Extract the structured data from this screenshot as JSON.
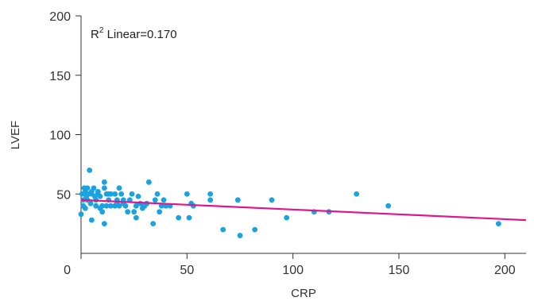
{
  "chart_data": {
    "type": "scatter",
    "xlabel": "CRP",
    "ylabel": "LVEF",
    "xlim": [
      0,
      210
    ],
    "ylim": [
      0,
      200
    ],
    "xticks": [
      0,
      50,
      100,
      150,
      200
    ],
    "yticks": [
      50,
      100,
      150,
      200
    ],
    "annotation": {
      "prefix": "R",
      "superscript": "2",
      "text": " Linear=0.170"
    },
    "point_color": "#1aa3e0",
    "line_color": "#e0168a",
    "fit_line": {
      "x": [
        0,
        210
      ],
      "y": [
        45,
        28
      ]
    },
    "points": [
      [
        0,
        33
      ],
      [
        0.5,
        50
      ],
      [
        1,
        40
      ],
      [
        1,
        45
      ],
      [
        1.5,
        55
      ],
      [
        2,
        52
      ],
      [
        2.5,
        48
      ],
      [
        3,
        45
      ],
      [
        3,
        55
      ],
      [
        3.5,
        50
      ],
      [
        2,
        38
      ],
      [
        4,
        70
      ],
      [
        4.5,
        42
      ],
      [
        5,
        50
      ],
      [
        5,
        52
      ],
      [
        5,
        28
      ],
      [
        6,
        55
      ],
      [
        6.5,
        48
      ],
      [
        7,
        45
      ],
      [
        7,
        40
      ],
      [
        8,
        50
      ],
      [
        8,
        52
      ],
      [
        9,
        48
      ],
      [
        9,
        38
      ],
      [
        10,
        40
      ],
      [
        10,
        35
      ],
      [
        11,
        60
      ],
      [
        11,
        55
      ],
      [
        12,
        50
      ],
      [
        13,
        50
      ],
      [
        13,
        45
      ],
      [
        14,
        50
      ],
      [
        14,
        40
      ],
      [
        11,
        25
      ],
      [
        12,
        40
      ],
      [
        16,
        40
      ],
      [
        16,
        50
      ],
      [
        17,
        45
      ],
      [
        17,
        42
      ],
      [
        18,
        40
      ],
      [
        18,
        55
      ],
      [
        19,
        50
      ],
      [
        20,
        45
      ],
      [
        20,
        42
      ],
      [
        21,
        40
      ],
      [
        22,
        35
      ],
      [
        23,
        45
      ],
      [
        24,
        50
      ],
      [
        25,
        35
      ],
      [
        26,
        40
      ],
      [
        26,
        30
      ],
      [
        27,
        48
      ],
      [
        28,
        42
      ],
      [
        29,
        38
      ],
      [
        30,
        40
      ],
      [
        31,
        42
      ],
      [
        32,
        60
      ],
      [
        34,
        25
      ],
      [
        35,
        45
      ],
      [
        36,
        50
      ],
      [
        37,
        35
      ],
      [
        38,
        40
      ],
      [
        39,
        45
      ],
      [
        40,
        40
      ],
      [
        42,
        40
      ],
      [
        46,
        30
      ],
      [
        50,
        50
      ],
      [
        51,
        30
      ],
      [
        52,
        42
      ],
      [
        53,
        40
      ],
      [
        61,
        50
      ],
      [
        61,
        45
      ],
      [
        67,
        20
      ],
      [
        74,
        45
      ],
      [
        75,
        15
      ],
      [
        82,
        20
      ],
      [
        90,
        45
      ],
      [
        97,
        30
      ],
      [
        110,
        35
      ],
      [
        117,
        35
      ],
      [
        130,
        50
      ],
      [
        145,
        40
      ],
      [
        197,
        25
      ]
    ]
  }
}
